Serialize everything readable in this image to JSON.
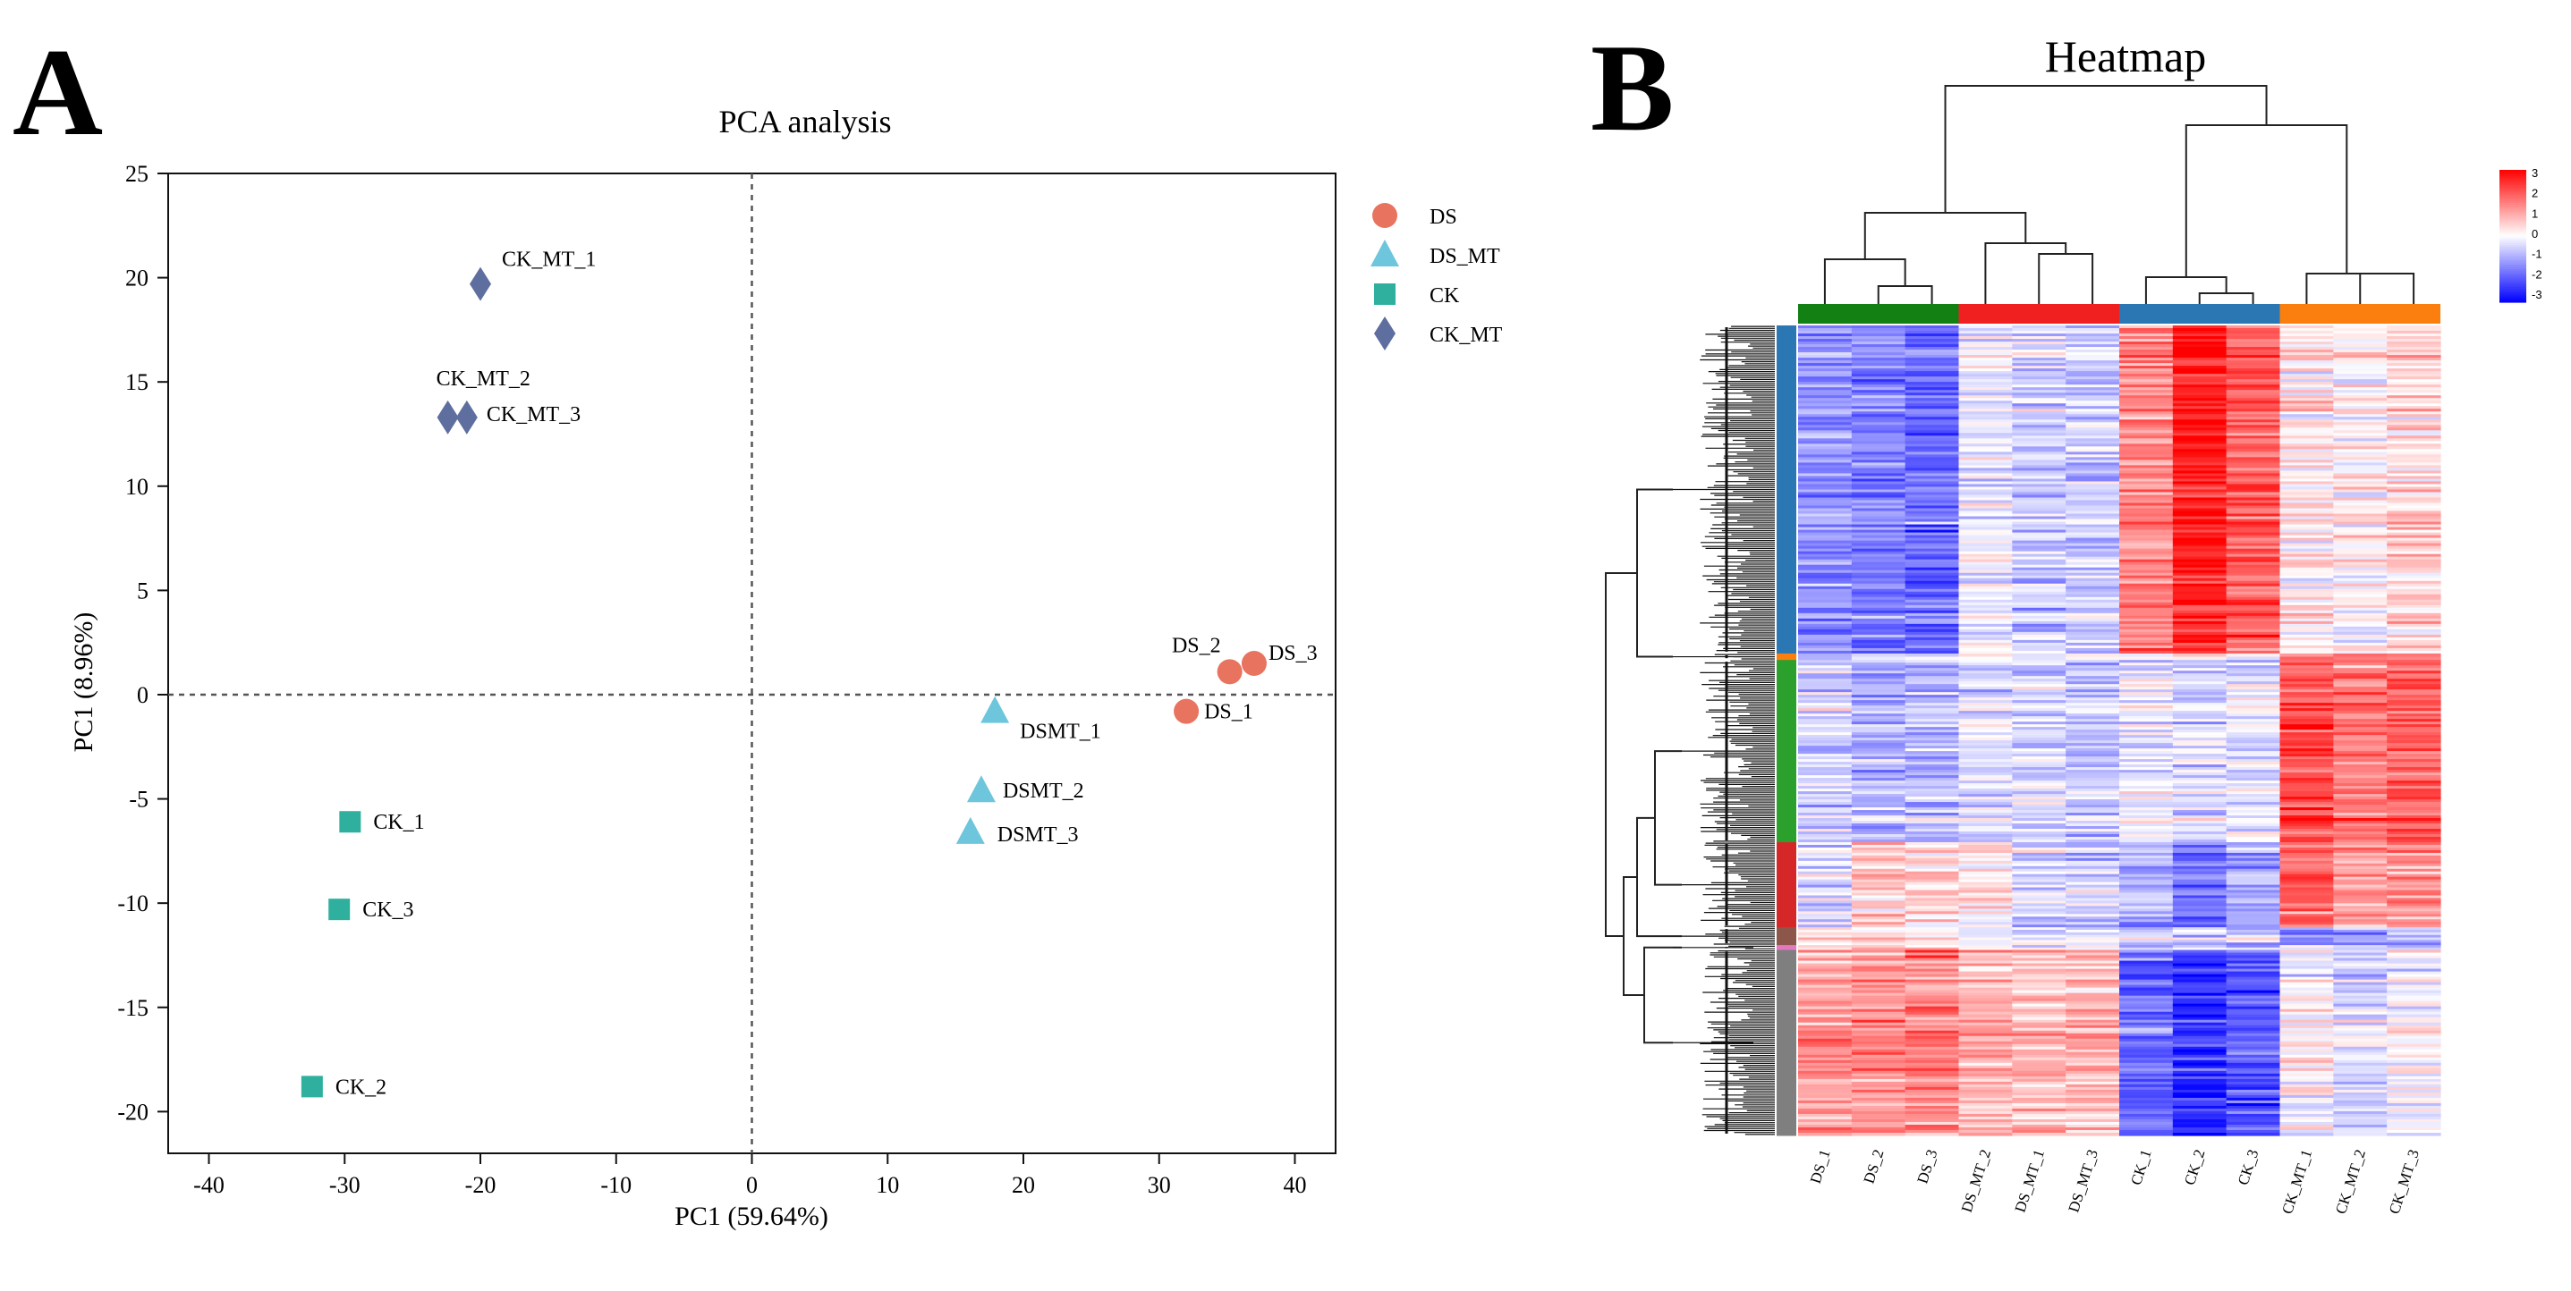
{
  "panel_a": {
    "letter": "A"
  },
  "panel_b": {
    "letter": "B"
  },
  "chart_data": [
    {
      "type": "scatter",
      "title": "PCA analysis",
      "xlabel": "PC1 (59.64%)",
      "ylabel": "PC1 (8.96%)",
      "xlim": [
        -43,
        43
      ],
      "ylim": [
        -22,
        25
      ],
      "xticks": [
        -40,
        -30,
        -20,
        -10,
        0,
        10,
        20,
        30,
        40
      ],
      "yticks": [
        25,
        20,
        15,
        10,
        5,
        0,
        -5,
        -10,
        -15,
        -20
      ],
      "grid": false,
      "reference_lines": {
        "x": 0,
        "y": 0,
        "style": "dashed"
      },
      "legend_position": "right",
      "series": [
        {
          "name": "DS",
          "marker": "circle",
          "color": "#E8735F",
          "points": [
            {
              "label": "DS_1",
              "x": 32,
              "y": -0.8
            },
            {
              "label": "DS_2",
              "x": 35.2,
              "y": 1.1
            },
            {
              "label": "DS_3",
              "x": 37,
              "y": 1.5
            }
          ]
        },
        {
          "name": "DS_MT",
          "marker": "triangle",
          "color": "#6EC6DD",
          "points": [
            {
              "label": "DSMT_1",
              "x": 17.9,
              "y": -0.8
            },
            {
              "label": "DSMT_2",
              "x": 16.9,
              "y": -4.6
            },
            {
              "label": "DSMT_3",
              "x": 16.1,
              "y": -6.6
            }
          ]
        },
        {
          "name": "CK",
          "marker": "square",
          "color": "#2FB09F",
          "points": [
            {
              "label": "CK_1",
              "x": -29.6,
              "y": -6.1
            },
            {
              "label": "CK_3",
              "x": -30.4,
              "y": -10.3
            },
            {
              "label": "CK_2",
              "x": -32.4,
              "y": -18.8
            }
          ]
        },
        {
          "name": "CK_MT",
          "marker": "diamond",
          "color": "#5E6E9E",
          "points": [
            {
              "label": "CK_MT_1",
              "x": -20,
              "y": 19.7
            },
            {
              "label": "CK_MT_2",
              "x": -22.4,
              "y": 13.3
            },
            {
              "label": "CK_MT_3",
              "x": -21,
              "y": 13.3
            }
          ]
        }
      ]
    },
    {
      "type": "heatmap",
      "title": "Heatmap",
      "columns": [
        "DS_1",
        "DS_2",
        "DS_3",
        "DS_MT_2",
        "DS_MT_1",
        "DS_MT_3",
        "CK_1",
        "CK_2",
        "CK_3",
        "CK_MT_1",
        "CK_MT_2",
        "CK_MT_3"
      ],
      "column_groups": [
        {
          "color": "#138013",
          "columns": [
            "DS_1",
            "DS_2",
            "DS_3"
          ]
        },
        {
          "color": "#F02020",
          "columns": [
            "DS_MT_2",
            "DS_MT_1",
            "DS_MT_3"
          ]
        },
        {
          "color": "#2A77B4",
          "columns": [
            "CK_1",
            "CK_2",
            "CK_3"
          ]
        },
        {
          "color": "#FA7F0E",
          "columns": [
            "CK_MT_1",
            "CK_MT_2",
            "CK_MT_3"
          ]
        }
      ],
      "color_scale": {
        "min": -3,
        "max": 3,
        "low": "#0000FF",
        "mid": "#FFFFFF",
        "high": "#FF0000"
      },
      "colorbar_ticks": [
        "3",
        "2",
        "1",
        "0",
        "-1",
        "-2",
        "-3"
      ],
      "row_clusters": [
        {
          "color": "#2A77B4",
          "fraction": 0.405,
          "profile": [
            -1.3,
            -1.5,
            -1.7,
            -0.3,
            -0.6,
            -0.6,
            1.4,
            2.6,
            1.9,
            0.3,
            0.1,
            0.5
          ]
        },
        {
          "color": "#FA7F0E",
          "fraction": 0.008,
          "profile": [
            -0.3,
            -0.3,
            -0.3,
            0.2,
            0.2,
            0.2,
            0.3,
            0.3,
            0.3,
            1.5,
            1.5,
            1.5
          ]
        },
        {
          "color": "#2CA02C",
          "fraction": 0.225,
          "profile": [
            -0.6,
            -0.9,
            -0.8,
            -0.4,
            -0.6,
            -0.7,
            -0.2,
            -0.4,
            -0.3,
            2.1,
            1.6,
            1.8
          ]
        },
        {
          "color": "#D62728",
          "fraction": 0.105,
          "profile": [
            -0.4,
            0.7,
            0.4,
            0.2,
            -0.4,
            -0.6,
            -0.9,
            -1.7,
            -1.0,
            1.7,
            1.2,
            1.3
          ]
        },
        {
          "color": "#8C564B",
          "fraction": 0.022,
          "profile": [
            0.2,
            0.4,
            0.3,
            -0.2,
            -0.3,
            -0.2,
            -0.4,
            -0.5,
            -0.4,
            -1.5,
            -1.2,
            -0.8
          ]
        },
        {
          "color": "#E377C2",
          "fraction": 0.006,
          "profile": [
            0.5,
            0.5,
            0.5,
            0.1,
            0.1,
            0.1,
            -0.5,
            -0.5,
            -0.5,
            -0.4,
            -0.4,
            -0.4
          ]
        },
        {
          "color": "#7F7F7F",
          "fraction": 0.229,
          "profile": [
            1.2,
            1.4,
            1.5,
            1.0,
            0.8,
            0.9,
            -1.6,
            -2.4,
            -1.9,
            0.1,
            -0.4,
            0.0
          ]
        }
      ]
    }
  ]
}
